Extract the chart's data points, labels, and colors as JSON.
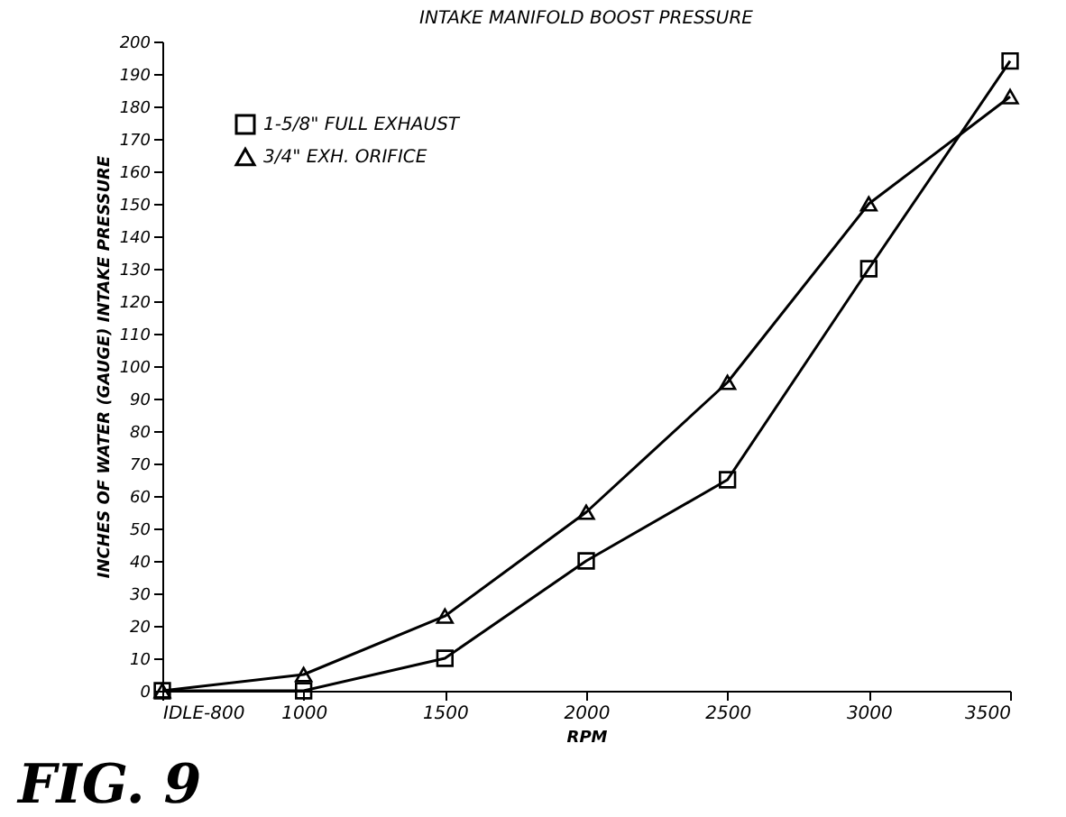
{
  "chart_data": {
    "type": "line",
    "title": "INTAKE MANIFOLD BOOST PRESSURE",
    "xlabel": "RPM",
    "ylabel": "INCHES OF WATER (GAUGE) INTAKE PRESSURE",
    "categories": [
      "IDLE-800",
      "1000",
      "1500",
      "2000",
      "2500",
      "3000",
      "3500"
    ],
    "series": [
      {
        "name": "1-5/8\" FULL EXHAUST",
        "color": "#000000",
        "marker": "square",
        "values": [
          0,
          0,
          10,
          40,
          65,
          130,
          194
        ]
      },
      {
        "name": "3/4\" EXH. ORIFICE",
        "color": "#000000",
        "marker": "triangle",
        "values": [
          0,
          5,
          23,
          55,
          95,
          150,
          183
        ]
      }
    ],
    "ylim": [
      0,
      200
    ],
    "yticks": [
      0,
      10,
      20,
      30,
      40,
      50,
      60,
      70,
      80,
      90,
      100,
      110,
      120,
      130,
      140,
      150,
      160,
      170,
      180,
      190,
      200
    ],
    "grid": false,
    "legend": "top left",
    "line_style": "solid",
    "annotations": [
      "FIG. 9"
    ]
  }
}
